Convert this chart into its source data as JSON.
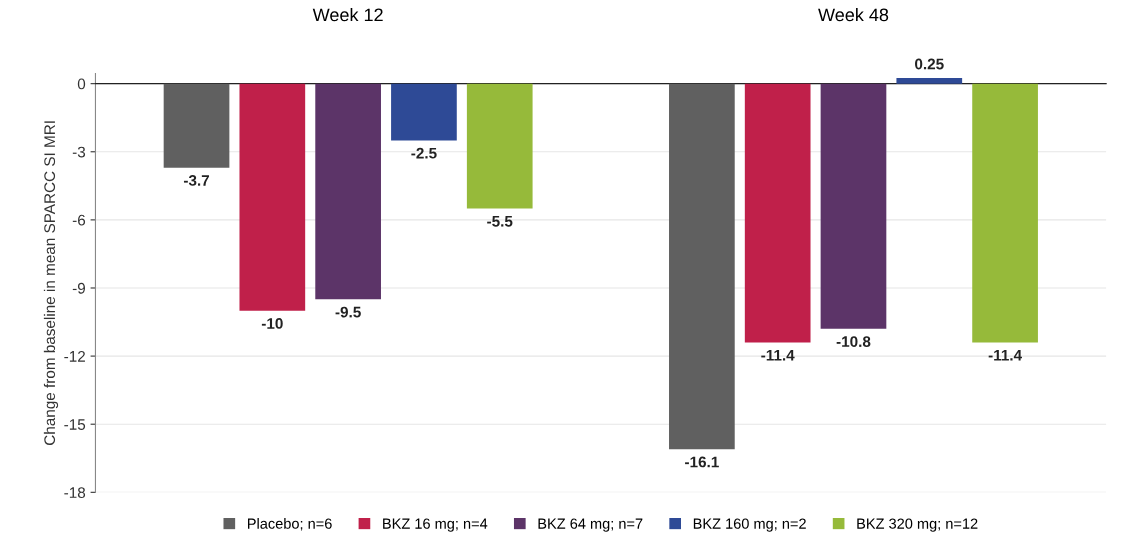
{
  "chart_data": {
    "type": "bar",
    "ylabel": "Change from baseline in mean SPARCC SI MRI",
    "categories": [
      "Week 12",
      "Week 48"
    ],
    "series": [
      {
        "name": "Placebo; n=6",
        "color": "#606060",
        "values": [
          -3.7,
          -16.1
        ]
      },
      {
        "name": "BKZ 16 mg; n=4",
        "color": "#c0204a",
        "values": [
          -10,
          -11.4
        ]
      },
      {
        "name": "BKZ 64 mg; n=7",
        "color": "#5c3468",
        "values": [
          -9.5,
          -10.8
        ]
      },
      {
        "name": "BKZ 160 mg; n=2",
        "color": "#2e4a96",
        "values": [
          -2.5,
          0.25
        ]
      },
      {
        "name": "BKZ 320 mg; n=12",
        "color": "#96ba3a",
        "values": [
          -5.5,
          -11.4
        ]
      }
    ],
    "ylim": [
      -18,
      0.45
    ],
    "yticks": [
      0,
      -3,
      -6,
      -9,
      -12,
      -15,
      -18
    ],
    "grid": "y",
    "legend": "bottom",
    "data_labels": true
  }
}
